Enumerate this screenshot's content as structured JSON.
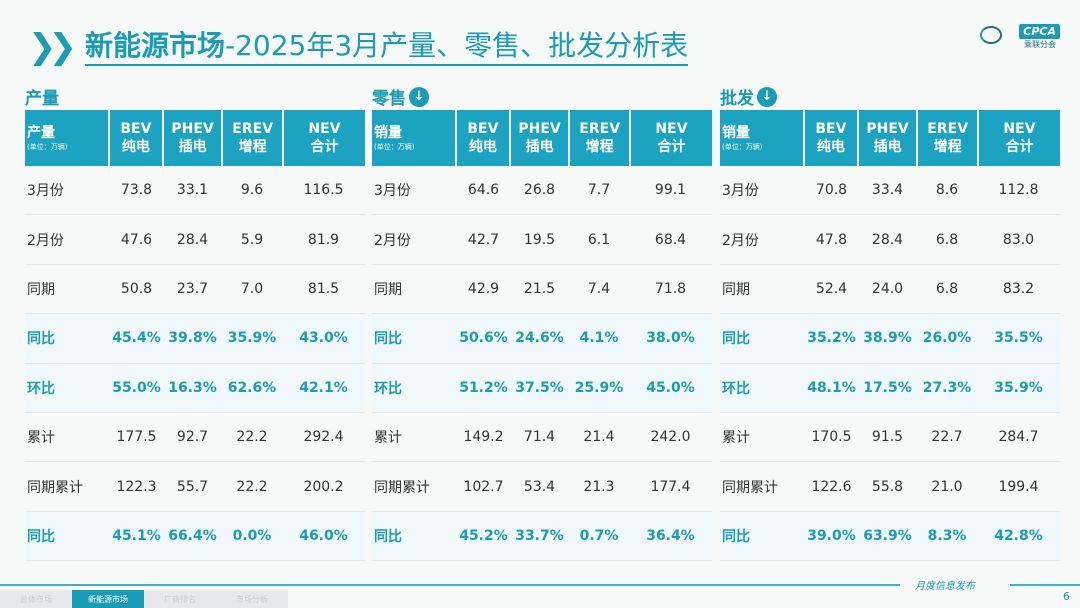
{
  "title": {
    "bold": "新能源市场",
    "rest": "-2025年3月产量、零售、批发分析表"
  },
  "logo": {
    "text": "CPCA",
    "sub": "乘联分会"
  },
  "colors": {
    "accent": "#1b9cb6",
    "header": "#1ba3c1"
  },
  "tables": [
    {
      "section": "产量",
      "arrow": false,
      "label": "产量",
      "unit": "(单位：万辆)",
      "cols": [
        [
          "BEV",
          "纯电"
        ],
        [
          "PHEV",
          "插电"
        ],
        [
          "EREV",
          "增程"
        ],
        [
          "NEV",
          "合计"
        ]
      ],
      "rows": [
        {
          "label": "3月份",
          "values": [
            "73.8",
            "33.1",
            "9.6",
            "116.5"
          ],
          "hl": false
        },
        {
          "label": "2月份",
          "values": [
            "47.6",
            "28.4",
            "5.9",
            "81.9"
          ],
          "hl": false
        },
        {
          "label": "同期",
          "values": [
            "50.8",
            "23.7",
            "7.0",
            "81.5"
          ],
          "hl": false
        },
        {
          "label": "同比",
          "values": [
            "45.4%",
            "39.8%",
            "35.9%",
            "43.0%"
          ],
          "hl": true
        },
        {
          "label": "环比",
          "values": [
            "55.0%",
            "16.3%",
            "62.6%",
            "42.1%"
          ],
          "hl": true
        },
        {
          "label": "累计",
          "values": [
            "177.5",
            "92.7",
            "22.2",
            "292.4"
          ],
          "hl": false
        },
        {
          "label": "同期累计",
          "values": [
            "122.3",
            "55.7",
            "22.2",
            "200.2"
          ],
          "hl": false
        },
        {
          "label": "同比",
          "values": [
            "45.1%",
            "66.4%",
            "0.0%",
            "46.0%"
          ],
          "hl": true
        }
      ]
    },
    {
      "section": "零售",
      "arrow": true,
      "label": "销量",
      "unit": "(单位：万辆)",
      "cols": [
        [
          "BEV",
          "纯电"
        ],
        [
          "PHEV",
          "插电"
        ],
        [
          "EREV",
          "增程"
        ],
        [
          "NEV",
          "合计"
        ]
      ],
      "rows": [
        {
          "label": "3月份",
          "values": [
            "64.6",
            "26.8",
            "7.7",
            "99.1"
          ],
          "hl": false
        },
        {
          "label": "2月份",
          "values": [
            "42.7",
            "19.5",
            "6.1",
            "68.4"
          ],
          "hl": false
        },
        {
          "label": "同期",
          "values": [
            "42.9",
            "21.5",
            "7.4",
            "71.8"
          ],
          "hl": false
        },
        {
          "label": "同比",
          "values": [
            "50.6%",
            "24.6%",
            "4.1%",
            "38.0%"
          ],
          "hl": true
        },
        {
          "label": "环比",
          "values": [
            "51.2%",
            "37.5%",
            "25.9%",
            "45.0%"
          ],
          "hl": true
        },
        {
          "label": "累计",
          "values": [
            "149.2",
            "71.4",
            "21.4",
            "242.0"
          ],
          "hl": false
        },
        {
          "label": "同期累计",
          "values": [
            "102.7",
            "53.4",
            "21.3",
            "177.4"
          ],
          "hl": false
        },
        {
          "label": "同比",
          "values": [
            "45.2%",
            "33.7%",
            "0.7%",
            "36.4%"
          ],
          "hl": true
        }
      ]
    },
    {
      "section": "批发",
      "arrow": true,
      "label": "销量",
      "unit": "(单位：万辆)",
      "cols": [
        [
          "BEV",
          "纯电"
        ],
        [
          "PHEV",
          "插电"
        ],
        [
          "EREV",
          "增程"
        ],
        [
          "NEV",
          "合计"
        ]
      ],
      "rows": [
        {
          "label": "3月份",
          "values": [
            "70.8",
            "33.4",
            "8.6",
            "112.8"
          ],
          "hl": false
        },
        {
          "label": "2月份",
          "values": [
            "47.8",
            "28.4",
            "6.8",
            "83.0"
          ],
          "hl": false
        },
        {
          "label": "同期",
          "values": [
            "52.4",
            "24.0",
            "6.8",
            "83.2"
          ],
          "hl": false
        },
        {
          "label": "同比",
          "values": [
            "35.2%",
            "38.9%",
            "26.0%",
            "35.5%"
          ],
          "hl": true
        },
        {
          "label": "环比",
          "values": [
            "48.1%",
            "17.5%",
            "27.3%",
            "35.9%"
          ],
          "hl": true
        },
        {
          "label": "累计",
          "values": [
            "170.5",
            "91.5",
            "22.7",
            "284.7"
          ],
          "hl": false
        },
        {
          "label": "同期累计",
          "values": [
            "122.6",
            "55.8",
            "21.0",
            "199.4"
          ],
          "hl": false
        },
        {
          "label": "同比",
          "values": [
            "39.0%",
            "63.9%",
            "8.3%",
            "42.8%"
          ],
          "hl": true
        }
      ]
    }
  ],
  "footer": {
    "tabs": [
      "总体市场",
      "新能源市场",
      "厂商排名",
      "市场分析"
    ],
    "active": 1,
    "tag": "月度信息发布",
    "page": "6"
  }
}
